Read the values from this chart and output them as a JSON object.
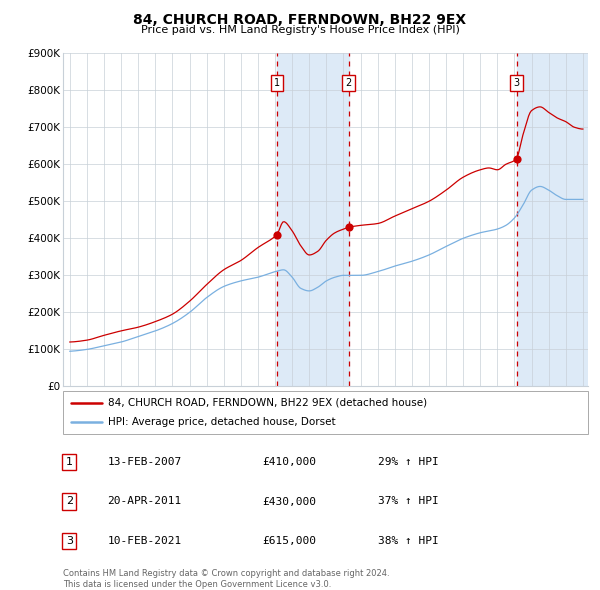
{
  "title": "84, CHURCH ROAD, FERNDOWN, BH22 9EX",
  "subtitle": "Price paid vs. HM Land Registry's House Price Index (HPI)",
  "ylim": [
    0,
    900000
  ],
  "yticks": [
    0,
    100000,
    200000,
    300000,
    400000,
    500000,
    600000,
    700000,
    800000,
    900000
  ],
  "ytick_labels": [
    "£0",
    "£100K",
    "£200K",
    "£300K",
    "£400K",
    "£500K",
    "£600K",
    "£700K",
    "£800K",
    "£900K"
  ],
  "hpi_color": "#7ab0e0",
  "price_color": "#cc0000",
  "dot_color": "#cc0000",
  "sale1_price": 410000,
  "sale1_x": 2007.11,
  "sale2_price": 430000,
  "sale2_x": 2011.3,
  "sale3_price": 615000,
  "sale3_x": 2021.12,
  "legend_label_price": "84, CHURCH ROAD, FERNDOWN, BH22 9EX (detached house)",
  "legend_label_hpi": "HPI: Average price, detached house, Dorset",
  "footer": "Contains HM Land Registry data © Crown copyright and database right 2024.\nThis data is licensed under the Open Government Licence v3.0.",
  "background_color": "#ffffff",
  "grid_color": "#c8d0d8",
  "shade_color": "#ddeaf7",
  "vline_color": "#cc0000",
  "table_rows": [
    {
      "num": "1",
      "date": "13-FEB-2007",
      "price": "£410,000",
      "hpi": "29% ↑ HPI"
    },
    {
      "num": "2",
      "date": "20-APR-2011",
      "price": "£430,000",
      "hpi": "37% ↑ HPI"
    },
    {
      "num": "3",
      "date": "10-FEB-2021",
      "price": "£615,000",
      "hpi": "38% ↑ HPI"
    }
  ],
  "hpi_anchors_x": [
    1995.0,
    1996.0,
    1997.0,
    1998.0,
    1999.0,
    2000.0,
    2001.0,
    2002.0,
    2003.0,
    2004.0,
    2005.0,
    2006.0,
    2007.0,
    2007.5,
    2008.0,
    2008.5,
    2009.0,
    2009.5,
    2010.0,
    2010.5,
    2011.0,
    2011.5,
    2012.0,
    2013.0,
    2014.0,
    2015.0,
    2016.0,
    2017.0,
    2018.0,
    2019.0,
    2020.0,
    2020.5,
    2021.0,
    2021.5,
    2022.0,
    2022.5,
    2023.0,
    2023.5,
    2024.0,
    2024.5,
    2025.0
  ],
  "hpi_anchors_y": [
    95000,
    100000,
    110000,
    120000,
    135000,
    150000,
    170000,
    200000,
    240000,
    270000,
    285000,
    295000,
    310000,
    315000,
    295000,
    265000,
    258000,
    268000,
    285000,
    295000,
    300000,
    300000,
    300000,
    310000,
    325000,
    338000,
    355000,
    378000,
    400000,
    415000,
    425000,
    435000,
    455000,
    490000,
    530000,
    540000,
    530000,
    515000,
    505000,
    505000,
    505000
  ],
  "prop_anchors_x": [
    1995.0,
    1996.0,
    1997.0,
    1998.0,
    1999.0,
    2000.0,
    2001.0,
    2002.0,
    2003.0,
    2004.0,
    2005.0,
    2006.0,
    2007.0,
    2007.11,
    2007.5,
    2008.0,
    2008.5,
    2009.0,
    2009.5,
    2010.0,
    2010.5,
    2011.0,
    2011.3,
    2012.0,
    2013.0,
    2014.0,
    2015.0,
    2016.0,
    2017.0,
    2018.0,
    2019.0,
    2019.5,
    2020.0,
    2020.5,
    2021.0,
    2021.12,
    2021.5,
    2022.0,
    2022.5,
    2023.0,
    2023.5,
    2024.0,
    2024.5,
    2025.0
  ],
  "prop_anchors_y": [
    120000,
    125000,
    138000,
    150000,
    160000,
    175000,
    195000,
    230000,
    275000,
    315000,
    340000,
    375000,
    405000,
    410000,
    445000,
    420000,
    380000,
    355000,
    365000,
    395000,
    415000,
    425000,
    430000,
    435000,
    440000,
    460000,
    480000,
    500000,
    530000,
    565000,
    585000,
    590000,
    585000,
    600000,
    610000,
    615000,
    680000,
    745000,
    755000,
    740000,
    725000,
    715000,
    700000,
    695000
  ]
}
